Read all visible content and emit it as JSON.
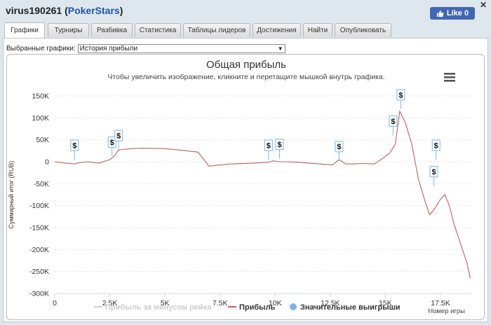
{
  "window": {
    "title_user": "virus190261",
    "title_site": "PokerStars",
    "title_open": "(",
    "title_close": ")",
    "close_glyph": "✕",
    "like_label": "Like 0"
  },
  "tabs": [
    {
      "label": "Графики",
      "active": true
    },
    {
      "label": "Турниры",
      "active": false
    },
    {
      "label": "Разбивка",
      "active": false
    },
    {
      "label": "Статистика",
      "active": false
    },
    {
      "label": "Таблицы лидеров",
      "active": false
    },
    {
      "label": "Достижения",
      "active": false
    },
    {
      "label": "Найти",
      "active": false
    },
    {
      "label": "Опубликовать",
      "active": false
    }
  ],
  "graph_select": {
    "label": "Выбранные графики:",
    "value": "История прибыли"
  },
  "chart_data": {
    "type": "line",
    "title": "Общая прибыль",
    "subtitle": "Чтобы увеличить изображение, кликните и перетащите мышкой внутрь графика.",
    "ylabel": "Суммарный итог (RUB)",
    "xlabel": "Номер игры",
    "xlim": [
      0,
      18900
    ],
    "ylim": [
      -300000,
      150000
    ],
    "x_ticks": [
      0,
      2500,
      5000,
      7500,
      10000,
      12500,
      15000,
      17500
    ],
    "x_tick_labels": [
      "0",
      "2.5K",
      "5K",
      "7.5K",
      "10K",
      "12.5K",
      "15K",
      "17.5K"
    ],
    "y_ticks": [
      150000,
      100000,
      50000,
      0,
      -50000,
      -100000,
      -150000,
      -200000,
      -250000,
      -300000
    ],
    "y_tick_labels": [
      "150K",
      "100K",
      "50K",
      "0",
      "-50K",
      "-100K",
      "-150K",
      "-200K",
      "-250K",
      "-300K"
    ],
    "grid": true,
    "legend_position": "bottom",
    "series": [
      {
        "name": "Прибыль за минусом рейка",
        "color": "#cfcfcf",
        "values": []
      },
      {
        "name": "Прибыль",
        "color": "#b5625f",
        "x": [
          0,
          500,
          900,
          1100,
          1500,
          2000,
          2500,
          2750,
          2850,
          3000,
          3500,
          4000,
          5000,
          6000,
          6500,
          7000,
          7500,
          8000,
          9000,
          9700,
          9900,
          10200,
          10500,
          11000,
          12000,
          12600,
          12900,
          13200,
          13500,
          14000,
          14500,
          14800,
          15200,
          15450,
          15650,
          15900,
          16200,
          16500,
          16800,
          17000,
          17200,
          17500,
          17700,
          17900,
          18100,
          18300,
          18500,
          18700,
          18850
        ],
        "values": [
          0,
          -3000,
          -5000,
          -2000,
          0,
          -3000,
          5000,
          15000,
          25000,
          28000,
          30000,
          31000,
          30000,
          25000,
          22000,
          -10000,
          -7000,
          -5000,
          -3000,
          -1000,
          2000,
          0,
          0,
          -1000,
          -5000,
          -7000,
          5000,
          -5000,
          -5000,
          -4000,
          -5000,
          5000,
          20000,
          40000,
          115000,
          90000,
          40000,
          -40000,
          -90000,
          -120000,
          -110000,
          -85000,
          -75000,
          -100000,
          -140000,
          -170000,
          -200000,
          -230000,
          -265000
        ]
      },
      {
        "name": "Значительные выигрыши",
        "color": "#7cb5ec",
        "marker_label": "$",
        "x": [
          900,
          2600,
          2900,
          9700,
          10200,
          12900,
          15350,
          15700,
          17200,
          17300
        ],
        "values": [
          5000,
          12000,
          27000,
          5000,
          7000,
          2000,
          60000,
          120000,
          -55000,
          5000
        ]
      }
    ]
  }
}
